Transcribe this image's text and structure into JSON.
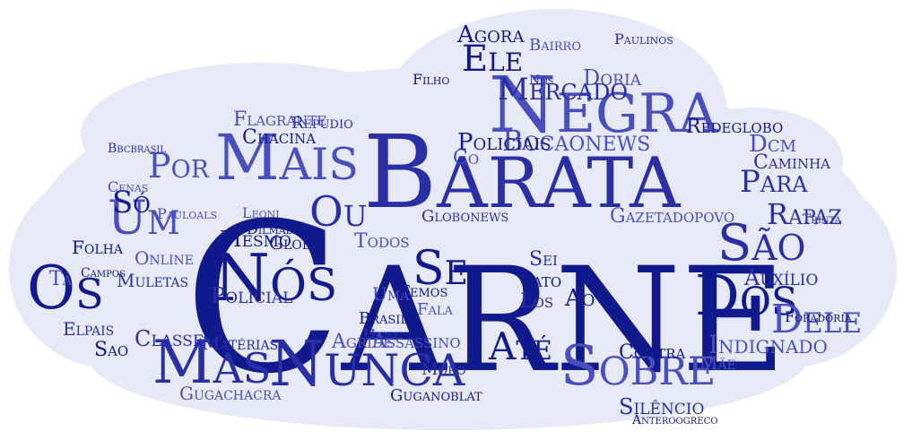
{
  "colors": {
    "background": "#ffffff",
    "cloud_fill": "#e8e9f7",
    "word_dark": "#111a8c",
    "word_mid": "#2a2fa6",
    "word_light": "#4a4fc0"
  },
  "words": [
    {
      "text": "Carne",
      "weight": 1.0
    },
    {
      "text": "Barata",
      "weight": 0.72
    },
    {
      "text": "Negra",
      "weight": 0.52
    },
    {
      "text": "Nós",
      "weight": 0.5
    },
    {
      "text": "Nunca",
      "weight": 0.48
    },
    {
      "text": "Mais",
      "weight": 0.46
    },
    {
      "text": "Os",
      "weight": 0.45
    },
    {
      "text": "Mas",
      "weight": 0.42
    },
    {
      "text": "Sobre",
      "weight": 0.4
    },
    {
      "text": "Dos",
      "weight": 0.38
    },
    {
      "text": "São",
      "weight": 0.36
    },
    {
      "text": "Um",
      "weight": 0.33
    },
    {
      "text": "Se",
      "weight": 0.3
    },
    {
      "text": "Ou",
      "weight": 0.3
    },
    {
      "text": "Dele",
      "weight": 0.3
    },
    {
      "text": "Ele",
      "weight": 0.28
    },
    {
      "text": "Mercado",
      "weight": 0.27
    },
    {
      "text": "Bocaonews",
      "weight": 0.25
    },
    {
      "text": "Até",
      "weight": 0.25
    },
    {
      "text": "Para",
      "weight": 0.24
    },
    {
      "text": "Por",
      "weight": 0.24
    },
    {
      "text": "Só",
      "weight": 0.23
    },
    {
      "text": "Rapaz",
      "weight": 0.22
    },
    {
      "text": "Dcm",
      "weight": 0.21
    },
    {
      "text": "Policiais",
      "weight": 0.2
    },
    {
      "text": "Policial",
      "weight": 0.2
    },
    {
      "text": "Indignado",
      "weight": 0.2
    },
    {
      "text": "Mesmo",
      "weight": 0.2
    },
    {
      "text": "Auxílio",
      "weight": 0.19
    },
    {
      "text": "Doria",
      "weight": 0.19
    },
    {
      "text": "Agora",
      "weight": 0.18
    },
    {
      "text": "Classe",
      "weight": 0.18
    },
    {
      "text": "Assassino",
      "weight": 0.18
    },
    {
      "text": "Contra",
      "weight": 0.18
    },
    {
      "text": "Silêncio",
      "weight": 0.18
    },
    {
      "text": "Flagrante",
      "weight": 0.17
    },
    {
      "text": "Chacina",
      "weight": 0.17
    },
    {
      "text": "Globonews",
      "weight": 0.17
    },
    {
      "text": "Gazetadopovo",
      "weight": 0.17
    },
    {
      "text": "Redeglobo",
      "weight": 0.17
    },
    {
      "text": "Caminha",
      "weight": 0.17
    },
    {
      "text": "Agride",
      "weight": 0.17
    },
    {
      "text": "Ao",
      "weight": 0.17
    },
    {
      "text": "Los",
      "weight": 0.17
    },
    {
      "text": "Todos",
      "weight": 0.17
    },
    {
      "text": "Jato",
      "weight": 0.17
    },
    {
      "text": "Sei",
      "weight": 0.17
    },
    {
      "text": "Uma",
      "weight": 0.17
    },
    {
      "text": "Globo",
      "weight": 0.17
    },
    {
      "text": "Muletas",
      "weight": 0.16
    },
    {
      "text": "Online",
      "weight": 0.16
    },
    {
      "text": "Folha",
      "weight": 0.16
    },
    {
      "text": "Elpais",
      "weight": 0.16
    },
    {
      "text": "Tá",
      "weight": 0.16
    },
    {
      "text": "Sao",
      "weight": 0.16
    },
    {
      "text": "Matérias",
      "weight": 0.16
    },
    {
      "text": "Gugachacra",
      "weight": 0.16
    },
    {
      "text": "Guganoblat",
      "weight": 0.16
    },
    {
      "text": "Moro",
      "weight": 0.16
    },
    {
      "text": "Mãe",
      "weight": 0.16
    },
    {
      "text": "Brasil",
      "weight": 0.15
    },
    {
      "text": "Hora",
      "weight": 0.15
    },
    {
      "text": "Fala",
      "weight": 0.15
    },
    {
      "text": "Temos",
      "weight": 0.15
    },
    {
      "text": "Repúdio",
      "weight": 0.15
    },
    {
      "text": "Leoni",
      "weight": 0.15
    },
    {
      "text": "Dilmabr",
      "weight": 0.15
    },
    {
      "text": "Paulinos",
      "weight": 0.14
    },
    {
      "text": "Bairro",
      "weight": 0.14
    },
    {
      "text": "Filho",
      "weight": 0.14
    },
    {
      "text": "Nós",
      "weight": 0.14
    },
    {
      "text": "Co",
      "weight": 0.14
    },
    {
      "text": "Foradoria",
      "weight": 0.14
    },
    {
      "text": "Trinta",
      "weight": 0.14
    },
    {
      "text": "Cenas",
      "weight": 0.14
    },
    {
      "text": "Campos",
      "weight": 0.14
    },
    {
      "text": "Bbcbrasil",
      "weight": 0.14
    },
    {
      "text": "Pauloals",
      "weight": 0.14
    },
    {
      "text": "Anteroogreco",
      "weight": 0.14
    }
  ]
}
